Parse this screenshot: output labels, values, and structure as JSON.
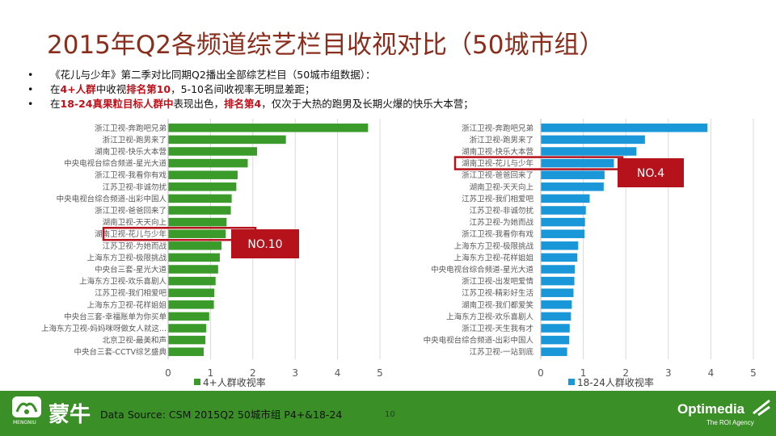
{
  "slide": {
    "title": "2015年Q2各频道综艺栏目收视对比（50城市组）",
    "bullets": [
      {
        "dot": "•",
        "parts": [
          {
            "text": "《花儿与少年》第二季对比同期Q2播出全部综艺栏目（50城市组数据）：",
            "hl": false
          }
        ]
      },
      {
        "dot": "•",
        "parts": [
          {
            "text": "在",
            "hl": false
          },
          {
            "text": "4+人群",
            "hl": true
          },
          {
            "text": "中收视",
            "hl": false
          },
          {
            "text": "排名第10",
            "hl": true
          },
          {
            "text": "，5-10名间收视率无明显差距；",
            "hl": false
          }
        ]
      },
      {
        "dot": "•",
        "parts": [
          {
            "text": "在",
            "hl": false
          },
          {
            "text": "18-24真果粒目标人群中",
            "hl": true
          },
          {
            "text": "表现出色，",
            "hl": false
          },
          {
            "text": "排名第4",
            "hl": true
          },
          {
            "text": "，仅次于大热的跑男及长期火爆的快乐大本营；",
            "hl": false
          }
        ]
      }
    ],
    "footer": {
      "source": "Data Source: CSM 2015Q2 50城市组 P4+&18-24",
      "page": "10",
      "brand_left": "蒙牛",
      "brand_left_sub": "MENGNIU",
      "brand_right": "Optimedia",
      "brand_right_tag": "The ROI Agency"
    },
    "colors": {
      "title": "#8a2d1c",
      "green_bar": "#3a9a2a",
      "blue_bar": "#1a97d8",
      "highlight_box": "#b5121b",
      "footer_bg": "#3a8f27"
    }
  },
  "chart_data": [
    {
      "type": "bar",
      "orientation": "horizontal",
      "categories": [
        "浙江卫视-奔跑吧兄弟",
        "浙江卫视-跑男来了",
        "湖南卫视-快乐大本营",
        "中央电视台综合频道-星光大道",
        "浙江卫视-我看你有戏",
        "江苏卫视-非诚勿扰",
        "中央电视台综合频道-出彩中国人",
        "浙江卫视-爸爸回来了",
        "湖南卫视-天天向上",
        "湖南卫视-花儿与少年",
        "江苏卫视-为她而战",
        "上海东方卫视-极限挑战",
        "中央台三套-星光大道",
        "上海东方卫视-欢乐喜剧人",
        "江苏卫视-我们相爱吧",
        "上海东方卫视-花样姐姐",
        "中央台三套-幸福账单为你买单",
        "上海东方卫视-妈妈咪呀做女人就这...",
        "北京卫视-最美和声",
        "中央台三套-CCTV综艺盛典"
      ],
      "series": [
        {
          "name": "4+人群收视率",
          "values": [
            4.72,
            2.78,
            2.1,
            1.88,
            1.64,
            1.61,
            1.5,
            1.48,
            1.38,
            1.36,
            1.26,
            1.22,
            1.18,
            1.12,
            1.09,
            1.08,
            0.97,
            0.9,
            0.88,
            0.84
          ]
        }
      ],
      "xlim": [
        0,
        5
      ],
      "xticks": [
        "0",
        "1",
        "2",
        "3",
        "4",
        "5"
      ],
      "grid": true,
      "legend": "bottom",
      "highlight": {
        "category": "湖南卫视-花儿与少年",
        "label": "NO.10"
      }
    },
    {
      "type": "bar",
      "orientation": "horizontal",
      "categories": [
        "浙江卫视-奔跑吧兄弟",
        "浙江卫视-跑男来了",
        "湖南卫视-快乐大本营",
        "湖南卫视-花儿与少年",
        "浙江卫视-爸爸回来了",
        "湖南卫视-天天向上",
        "江苏卫视-我们相爱吧",
        "江苏卫视-非诚勿扰",
        "江苏卫视-为她而战",
        "浙江卫视-我看你有戏",
        "上海东方卫视-极限挑战",
        "上海东方卫视-花样姐姐",
        "中央电视台综合频道-星光大道",
        "浙江卫视-出发吧爱情",
        "江苏卫视-精彩好生活",
        "湖南卫视-我们都爱笑",
        "上海东方卫视-欢乐喜剧人",
        "浙江卫视-天生我有才",
        "中央电视台综合频道-出彩中国人",
        "江苏卫视-一站到底"
      ],
      "series": [
        {
          "name": "18-24人群收视率",
          "values": [
            3.92,
            2.45,
            2.25,
            1.72,
            1.5,
            1.48,
            1.15,
            1.06,
            1.04,
            1.03,
            0.88,
            0.86,
            0.8,
            0.79,
            0.77,
            0.73,
            0.71,
            0.68,
            0.67,
            0.62
          ]
        }
      ],
      "xlim": [
        0,
        5
      ],
      "xticks": [
        "0",
        "1",
        "2",
        "3",
        "4",
        "5"
      ],
      "grid": true,
      "legend": "bottom",
      "highlight": {
        "category": "湖南卫视-花儿与少年",
        "label": "NO.4"
      }
    }
  ]
}
